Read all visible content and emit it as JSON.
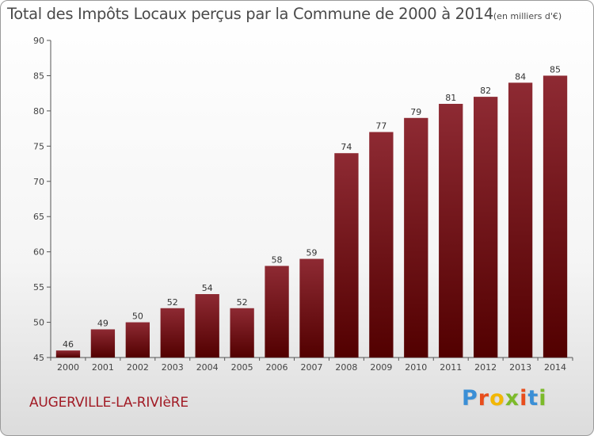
{
  "title": {
    "main": "Total des Impôts Locaux perçus par la Commune de 2000 à 2014",
    "unit": "(en milliers d'€)"
  },
  "commune": "AUGERVILLE-LA-RIVIèRE",
  "brand": {
    "letters": [
      "P",
      "r",
      "o",
      "x",
      "i",
      "t",
      "i"
    ],
    "colors": [
      "#3b8fd6",
      "#e84d1c",
      "#f2b705",
      "#7cba2a",
      "#e84d1c",
      "#3b8fd6",
      "#7cba2a"
    ]
  },
  "colors": {
    "bar_top": "#8e2a33",
    "bar_bottom": "#520000"
  },
  "chart_data": {
    "type": "bar",
    "title": "Total des Impôts Locaux perçus par la Commune de 2000 à 2014",
    "xlabel": "",
    "ylabel": "",
    "categories": [
      "2000",
      "2001",
      "2002",
      "2003",
      "2004",
      "2005",
      "2006",
      "2007",
      "2008",
      "2009",
      "2010",
      "2011",
      "2012",
      "2013",
      "2014"
    ],
    "values": [
      46,
      49,
      50,
      52,
      54,
      52,
      58,
      59,
      74,
      77,
      79,
      81,
      82,
      84,
      85
    ],
    "ylim": [
      45,
      90
    ],
    "yticks": [
      45,
      50,
      55,
      60,
      65,
      70,
      75,
      80,
      85,
      90
    ],
    "grid": false
  }
}
